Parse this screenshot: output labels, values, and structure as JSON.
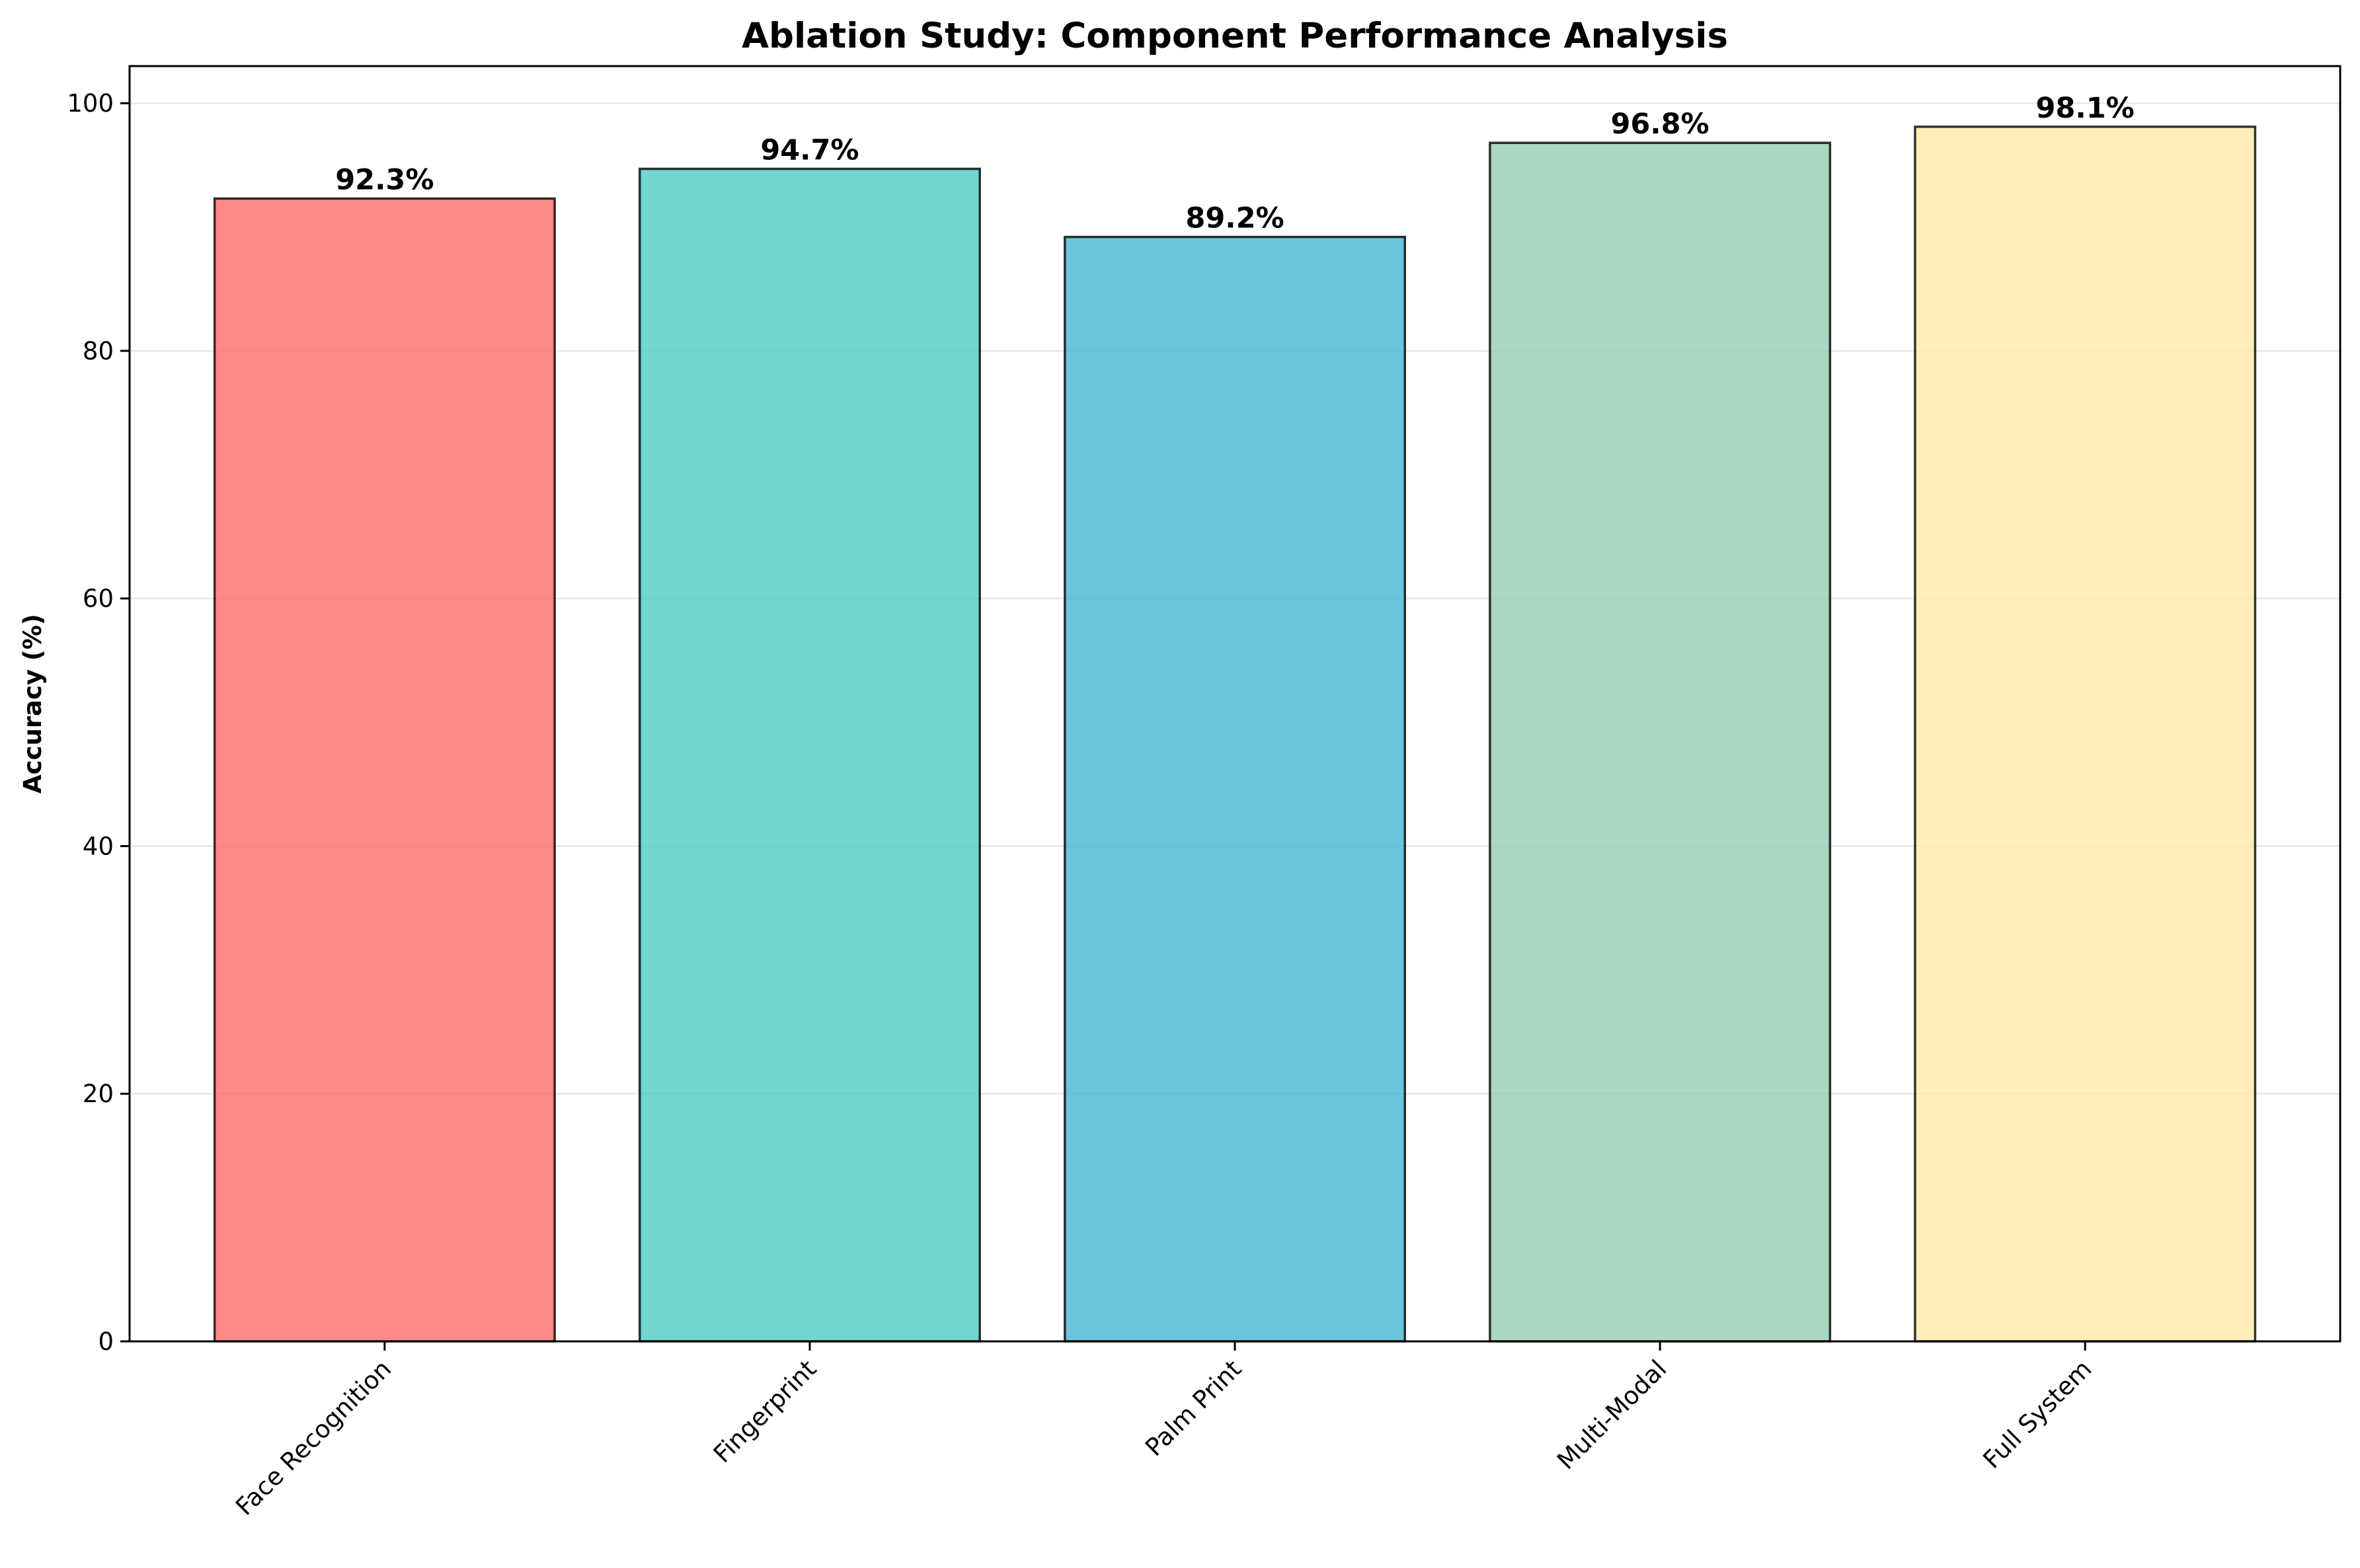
{
  "chart_data": {
    "type": "bar",
    "title": "Ablation Study: Component Performance Analysis",
    "xlabel": "",
    "ylabel": "Accuracy (%)",
    "categories": [
      "Face Recognition",
      "Fingerprint",
      "Palm Print",
      "Multi-Modal",
      "Full System"
    ],
    "values": [
      92.3,
      94.7,
      89.2,
      96.8,
      98.1
    ],
    "data_labels": [
      "92.3%",
      "94.7%",
      "89.2%",
      "96.8%",
      "98.1%"
    ],
    "colors": [
      "#FF6B6B",
      "#4ECDC4",
      "#45B7D1",
      "#96CEB4",
      "#FFEAA7"
    ],
    "edge_color": "#000000",
    "ylim": [
      0,
      103
    ],
    "yticks": [
      0,
      20,
      40,
      60,
      80,
      100
    ],
    "ytick_labels": [
      "0",
      "20",
      "40",
      "60",
      "80",
      "100"
    ],
    "grid": "y-axis, light",
    "legend": "none"
  }
}
